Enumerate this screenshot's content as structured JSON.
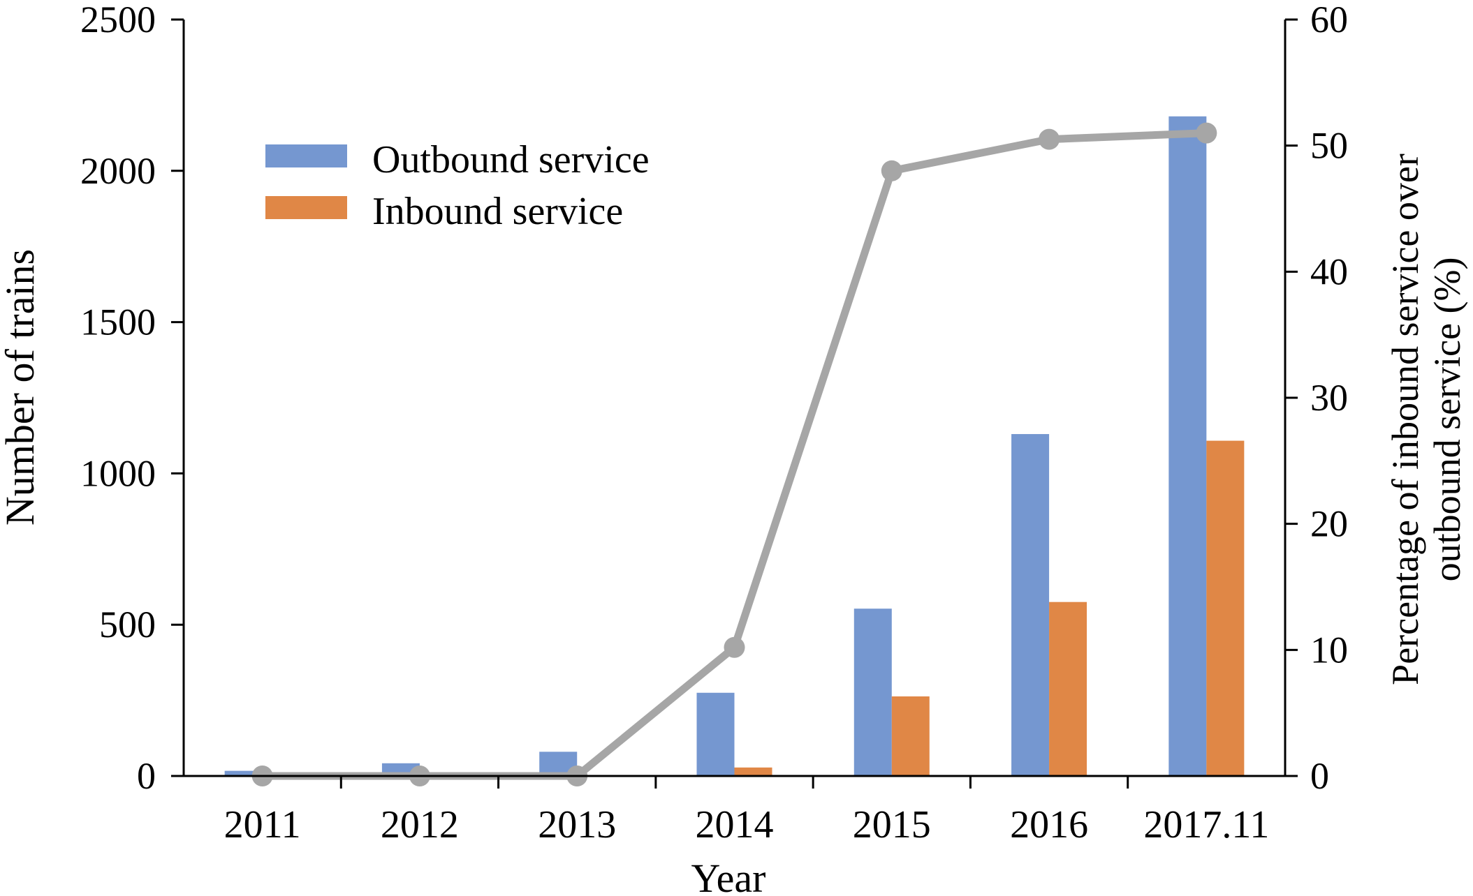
{
  "chart_data": {
    "type": "bar",
    "categories": [
      "2011",
      "2012",
      "2013",
      "2014",
      "2015",
      "2016",
      "2017.11"
    ],
    "xlabel": "Year",
    "ylabel": "Number of trains",
    "ylabel_right": [
      "Percentage of inbound service over",
      "outbound service (%)"
    ],
    "ylim": [
      0,
      2500
    ],
    "ylim_right": [
      0,
      60
    ],
    "yticks": [
      "0",
      "500",
      "1000",
      "1500",
      "2000",
      "2500"
    ],
    "yticks_right": [
      "0",
      "10",
      "20",
      "30",
      "40",
      "50",
      "60"
    ],
    "grid": false,
    "legend_position": "top-left",
    "series": [
      {
        "name": "Outbound service",
        "kind": "bar",
        "axis": "left",
        "color": "#7597D0",
        "values": [
          17,
          42,
          80,
          275,
          553,
          1130,
          2180
        ]
      },
      {
        "name": "Inbound service",
        "kind": "bar",
        "axis": "left",
        "color": "#E08746",
        "values": [
          0,
          0,
          0,
          28,
          263,
          575,
          1108
        ]
      },
      {
        "kind": "line",
        "axis": "right",
        "color": "#A6A6A6",
        "values": [
          0,
          0,
          0,
          10.2,
          48,
          50.5,
          51
        ]
      }
    ]
  }
}
